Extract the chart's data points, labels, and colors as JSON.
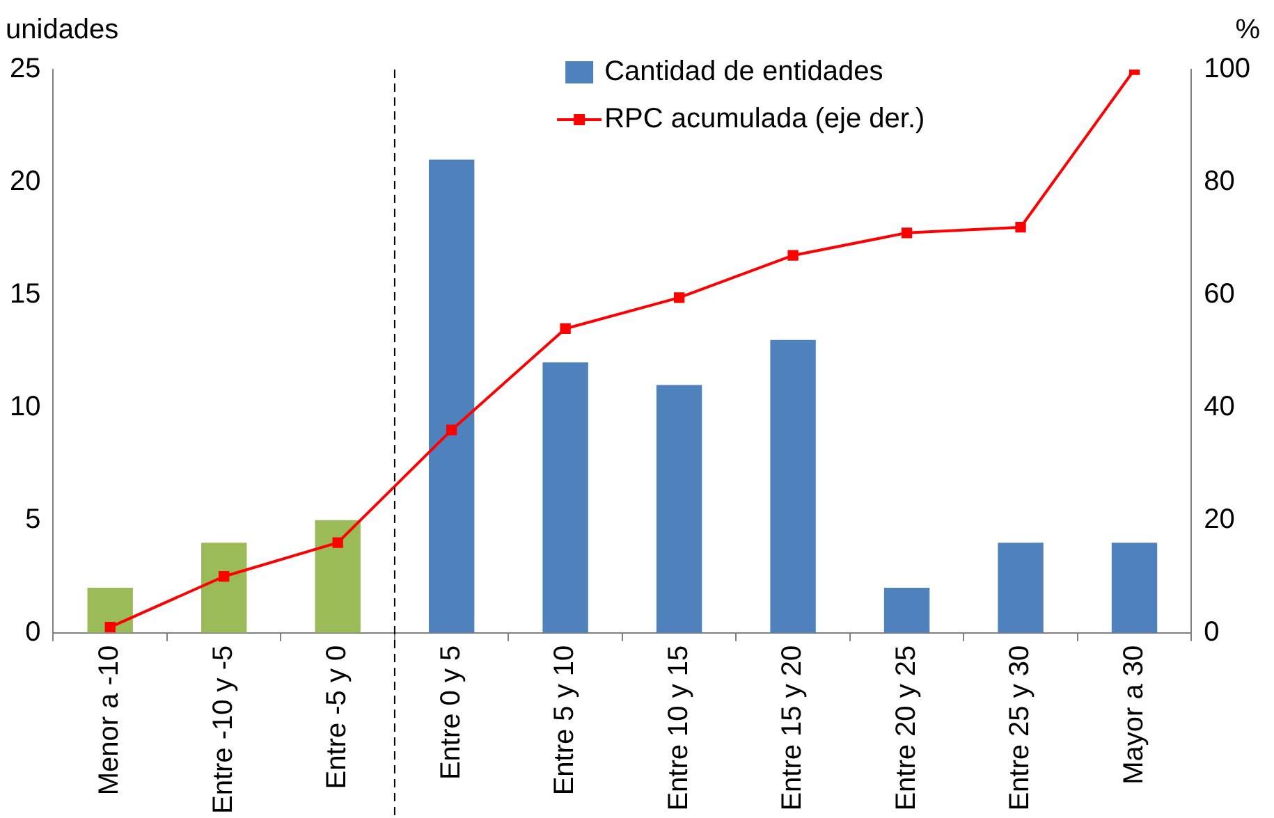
{
  "chart_data": {
    "type": "bar",
    "ylabel": "unidades",
    "y2label": "%",
    "categories": [
      "Menor a -10",
      "Entre -10 y -5",
      "Entre -5 y 0",
      "Entre 0 y 5",
      "Entre 5 y 10",
      "Entre 10 y 15",
      "Entre 15 y 20",
      "Entre 20 y 25",
      "Entre 25 y 30",
      "Mayor a 30"
    ],
    "series": [
      {
        "name": "Cantidad de entidades",
        "type": "bar",
        "color": "#4f81bd",
        "colors": [
          "#9bbb59",
          "#9bbb59",
          "#9bbb59",
          "#4f81bd",
          "#4f81bd",
          "#4f81bd",
          "#4f81bd",
          "#4f81bd",
          "#4f81bd",
          "#4f81bd"
        ],
        "values": [
          2,
          4,
          5,
          21,
          12,
          11,
          13,
          2,
          4,
          4
        ]
      },
      {
        "name": "RPC acumulada (eje der.)",
        "type": "line",
        "axis": "y2",
        "color": "#ff0000",
        "marker": "square",
        "values": [
          1,
          10,
          16,
          36,
          54,
          59.5,
          67,
          71,
          72,
          100
        ]
      }
    ],
    "ylim": [
      0,
      25
    ],
    "yticks": [
      0,
      5,
      10,
      15,
      20,
      25
    ],
    "y2lim": [
      0,
      100
    ],
    "y2ticks": [
      0,
      20,
      40,
      60,
      80,
      100
    ],
    "grid": false,
    "legend": "top"
  }
}
